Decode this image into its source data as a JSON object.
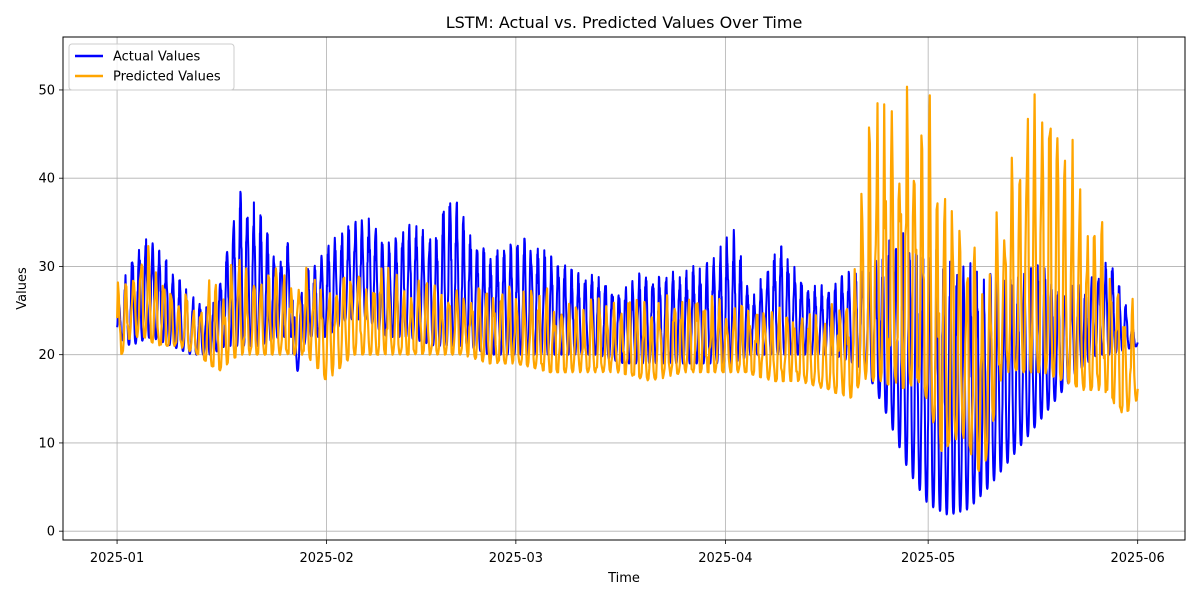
{
  "chart_data": {
    "type": "line",
    "title": "LSTM: Actual vs. Predicted Values Over Time",
    "xlabel": "Time",
    "ylabel": "Values",
    "x_range": [
      "2025-01-01",
      "2025-06-01"
    ],
    "xlim": [
      "2024-12-24",
      "2025-06-08"
    ],
    "ylim": [
      -1,
      56
    ],
    "x_ticks": [
      "2025-01",
      "2025-02",
      "2025-03",
      "2025-04",
      "2025-05",
      "2025-06"
    ],
    "x_tick_dates": [
      "2025-01-01",
      "2025-02-01",
      "2025-03-01",
      "2025-04-01",
      "2025-05-01",
      "2025-06-01"
    ],
    "y_ticks": [
      0,
      10,
      20,
      30,
      40,
      50
    ],
    "grid": true,
    "legend_position": "top-left",
    "series": [
      {
        "name": "Actual Values",
        "color": "#0000ff",
        "points": [
          [
            "2025-01-01",
            22,
            25
          ],
          [
            "2025-01-03",
            21,
            32
          ],
          [
            "2025-01-06",
            22,
            34
          ],
          [
            "2025-01-09",
            21,
            30
          ],
          [
            "2025-01-12",
            20,
            27
          ],
          [
            "2025-01-15",
            20,
            25
          ],
          [
            "2025-01-17",
            21,
            33
          ],
          [
            "2025-01-19",
            21,
            39
          ],
          [
            "2025-01-22",
            21,
            37
          ],
          [
            "2025-01-25",
            22,
            31
          ],
          [
            "2025-01-27",
            22,
            35
          ],
          [
            "2025-01-27",
            16,
            24
          ],
          [
            "2025-01-29",
            22,
            30
          ],
          [
            "2025-02-01",
            22,
            33
          ],
          [
            "2025-02-04",
            24,
            35
          ],
          [
            "2025-02-07",
            24,
            36
          ],
          [
            "2025-02-10",
            22,
            33
          ],
          [
            "2025-02-13",
            22,
            36
          ],
          [
            "2025-02-17",
            21,
            34
          ],
          [
            "2025-02-19",
            21,
            40
          ],
          [
            "2025-02-22",
            21,
            35
          ],
          [
            "2025-02-25",
            20,
            32
          ],
          [
            "2025-02-28",
            20,
            33
          ],
          [
            "2025-03-03",
            20,
            34
          ],
          [
            "2025-03-06",
            20,
            32
          ],
          [
            "2025-03-09",
            20,
            30
          ],
          [
            "2025-03-13",
            20,
            29
          ],
          [
            "2025-03-17",
            19,
            28
          ],
          [
            "2025-03-20",
            19,
            30
          ],
          [
            "2025-03-25",
            19,
            30
          ],
          [
            "2025-03-30",
            19,
            31
          ],
          [
            "2025-04-02",
            19,
            35
          ],
          [
            "2025-04-05",
            20,
            27
          ],
          [
            "2025-04-09",
            20,
            33
          ],
          [
            "2025-04-13",
            20,
            28
          ],
          [
            "2025-04-17",
            20,
            28
          ],
          [
            "2025-04-20",
            19,
            31
          ],
          [
            "2025-04-22",
            18,
            30
          ],
          [
            "2025-04-25",
            13,
            33
          ],
          [
            "2025-04-28",
            7,
            35
          ],
          [
            "2025-05-01",
            3,
            33
          ],
          [
            "2025-05-04",
            1.8,
            32
          ],
          [
            "2025-05-07",
            2.5,
            31
          ],
          [
            "2025-05-10",
            5,
            30
          ],
          [
            "2025-05-14",
            9,
            30
          ],
          [
            "2025-05-17",
            12,
            31
          ],
          [
            "2025-05-20",
            15,
            29
          ],
          [
            "2025-05-23",
            18,
            28
          ],
          [
            "2025-05-26",
            20,
            30
          ],
          [
            "2025-05-28",
            20,
            31
          ],
          [
            "2025-06-01",
            21,
            22
          ]
        ]
      },
      {
        "name": "Predicted Values",
        "color": "#ffa500",
        "points": [
          [
            "2025-01-01",
            19,
            29
          ],
          [
            "2025-01-03",
            22,
            31
          ],
          [
            "2025-01-05",
            22,
            34
          ],
          [
            "2025-01-07",
            21,
            30
          ],
          [
            "2025-01-10",
            21,
            28
          ],
          [
            "2025-01-13",
            20,
            27
          ],
          [
            "2025-01-16",
            18,
            30
          ],
          [
            "2025-01-19",
            20,
            32
          ],
          [
            "2025-01-22",
            20,
            30
          ],
          [
            "2025-01-25",
            20,
            30
          ],
          [
            "2025-01-29",
            20,
            30
          ],
          [
            "2025-02-01",
            17,
            30
          ],
          [
            "2025-02-05",
            20,
            30
          ],
          [
            "2025-02-09",
            20,
            30
          ],
          [
            "2025-02-13",
            20,
            30
          ],
          [
            "2025-02-17",
            20,
            29
          ],
          [
            "2025-02-21",
            20,
            29
          ],
          [
            "2025-02-25",
            19,
            28
          ],
          [
            "2025-03-01",
            19,
            28
          ],
          [
            "2025-03-06",
            18,
            28
          ],
          [
            "2025-03-11",
            18,
            27
          ],
          [
            "2025-03-16",
            18,
            27
          ],
          [
            "2025-03-21",
            17,
            27
          ],
          [
            "2025-03-26",
            18,
            28
          ],
          [
            "2025-03-31",
            18,
            27
          ],
          [
            "2025-04-04",
            18,
            27
          ],
          [
            "2025-04-08",
            17,
            27
          ],
          [
            "2025-04-12",
            17,
            26
          ],
          [
            "2025-04-16",
            16,
            26
          ],
          [
            "2025-04-20",
            15,
            29
          ],
          [
            "2025-04-21",
            17,
            42
          ],
          [
            "2025-04-24",
            17,
            53
          ],
          [
            "2025-04-27",
            16,
            53
          ],
          [
            "2025-04-30",
            17,
            53
          ],
          [
            "2025-05-03",
            9,
            45
          ],
          [
            "2025-05-06",
            11,
            38
          ],
          [
            "2025-05-09",
            6,
            37
          ],
          [
            "2025-05-12",
            18,
            40
          ],
          [
            "2025-05-15",
            18,
            52
          ],
          [
            "2025-05-18",
            18,
            50
          ],
          [
            "2025-05-21",
            17,
            52
          ],
          [
            "2025-05-24",
            16,
            42
          ],
          [
            "2025-05-27",
            16,
            38
          ],
          [
            "2025-05-30",
            13,
            30
          ],
          [
            "2025-06-01",
            15,
            25
          ]
        ]
      }
    ]
  }
}
